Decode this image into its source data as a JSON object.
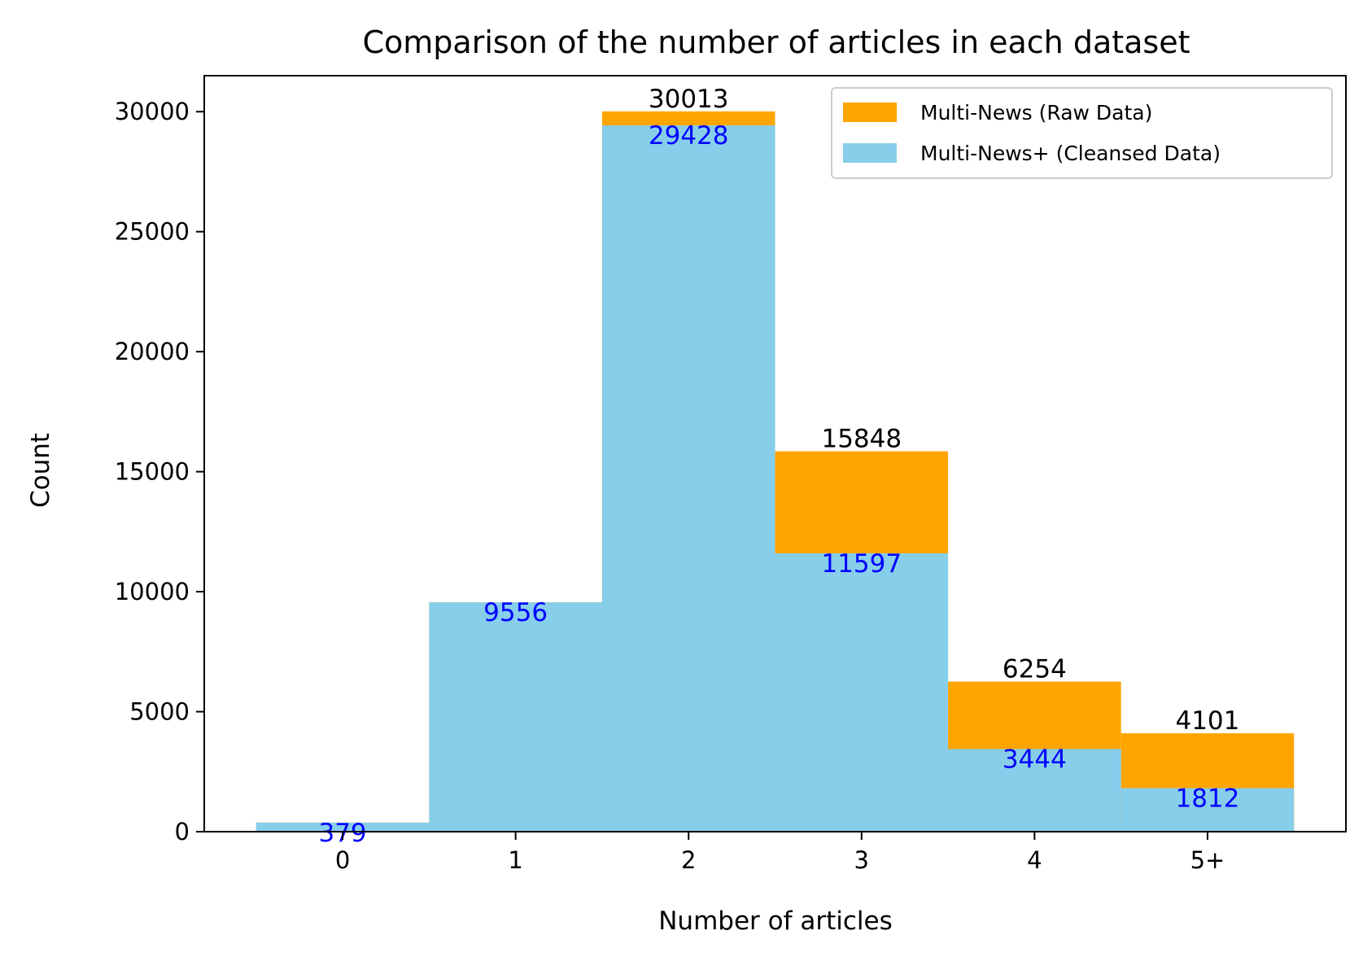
{
  "chart_data": {
    "type": "bar",
    "title": "Comparison of the number of articles in each dataset",
    "xlabel": "Number of articles",
    "ylabel": "Count",
    "categories": [
      "0",
      "1",
      "2",
      "3",
      "4",
      "5+"
    ],
    "series": [
      {
        "name": "Multi-News (Raw Data)",
        "color": "#FFA500",
        "label_color": "#000000",
        "values": [
          379,
          9556,
          30013,
          15848,
          6254,
          4101
        ],
        "labels": [
          "",
          "",
          "30013",
          "15848",
          "6254",
          "4101"
        ]
      },
      {
        "name": "Multi-News+ (Cleansed Data)",
        "color": "#87CEEB",
        "label_color": "#0000FF",
        "values": [
          379,
          9556,
          29428,
          11597,
          3444,
          1812
        ],
        "labels": [
          "379",
          "9556",
          "29428",
          "11597",
          "3444",
          "1812"
        ]
      }
    ],
    "ylim": [
      0,
      31500
    ],
    "yticks": [
      0,
      5000,
      10000,
      15000,
      20000,
      25000,
      30000
    ],
    "xlim": [
      -0.8,
      5.8
    ],
    "grid": false,
    "legend_position": "top-right"
  }
}
